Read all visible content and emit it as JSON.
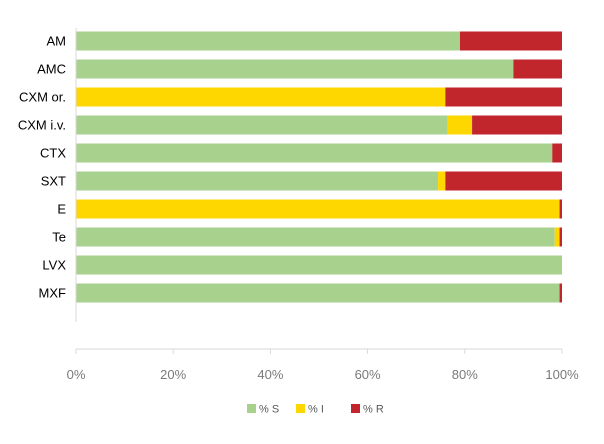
{
  "chart_data": {
    "type": "bar",
    "orientation": "horizontal",
    "stacked": true,
    "title": "",
    "xlabel": "",
    "ylabel": "",
    "xlim": [
      0,
      100
    ],
    "x_ticks": [
      "0%",
      "20%",
      "40%",
      "60%",
      "80%",
      "100%"
    ],
    "grid": false,
    "legend_position": "bottom",
    "categories": [
      "AM",
      "AMC",
      "CXM or.",
      "CXM i.v.",
      "CTX",
      "SXT",
      "E",
      "Te",
      "LVX",
      "MXF"
    ],
    "series": [
      {
        "name": "% S",
        "color": "#a9d18e",
        "values": [
          79,
          90,
          0,
          76.5,
          98,
          74.5,
          0,
          98.5,
          100,
          99.5
        ]
      },
      {
        "name": "% I",
        "color": "#ffd700",
        "values": [
          0,
          0,
          76,
          5,
          0,
          1.5,
          99.5,
          1,
          0,
          0
        ]
      },
      {
        "name": "% R",
        "color": "#c0262c",
        "values": [
          21,
          10,
          24,
          18.5,
          2,
          24,
          0.5,
          0.5,
          0,
          0.5
        ]
      }
    ]
  }
}
